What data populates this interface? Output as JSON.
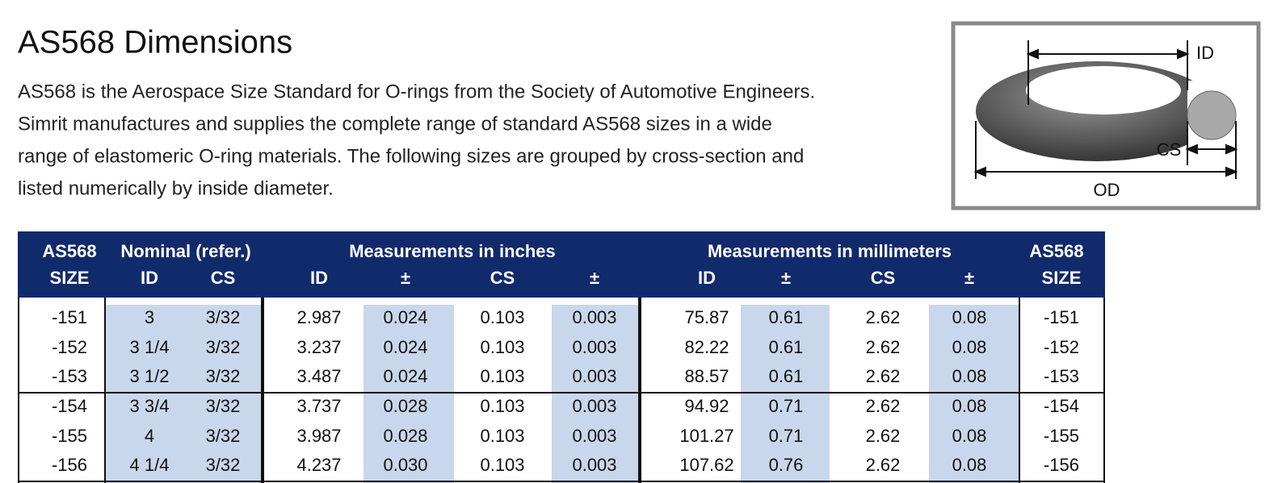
{
  "header": {
    "title": "AS568 Dimensions",
    "paragraph": [
      "AS568 is the Aerospace Size Standard for O-rings from the Society of Automotive Engineers.",
      "Simrit manufactures and supplies the complete range of standard AS568 sizes in a wide",
      "range of elastomeric O-ring materials. The following sizes are grouped by cross-section and",
      "listed numerically by inside diameter."
    ]
  },
  "diagram": {
    "labels": [
      "ID",
      "CS",
      "OD"
    ]
  },
  "table": {
    "group_headers": [
      "AS568",
      "Nominal (refer.)",
      "Measurements in inches",
      "Measurements in millimeters",
      "AS568"
    ],
    "columns": [
      "SIZE",
      "ID",
      "CS",
      "ID",
      "±",
      "CS",
      "±",
      "ID",
      "±",
      "CS",
      "±",
      "SIZE"
    ],
    "rows": [
      [
        "-151",
        "3",
        "3/32",
        "2.987",
        "0.024",
        "0.103",
        "0.003",
        "75.87",
        "0.61",
        "2.62",
        "0.08",
        "-151"
      ],
      [
        "-152",
        "3 1/4",
        "3/32",
        "3.237",
        "0.024",
        "0.103",
        "0.003",
        "82.22",
        "0.61",
        "2.62",
        "0.08",
        "-152"
      ],
      [
        "-153",
        "3 1/2",
        "3/32",
        "3.487",
        "0.024",
        "0.103",
        "0.003",
        "88.57",
        "0.61",
        "2.62",
        "0.08",
        "-153"
      ],
      [
        "-154",
        "3 3/4",
        "3/32",
        "3.737",
        "0.028",
        "0.103",
        "0.003",
        "94.92",
        "0.71",
        "2.62",
        "0.08",
        "-154"
      ],
      [
        "-155",
        "4",
        "3/32",
        "3.987",
        "0.028",
        "0.103",
        "0.003",
        "101.27",
        "0.71",
        "2.62",
        "0.08",
        "-155"
      ],
      [
        "-156",
        "4 1/4",
        "3/32",
        "4.237",
        "0.030",
        "0.103",
        "0.003",
        "107.62",
        "0.76",
        "2.62",
        "0.08",
        "-156"
      ]
    ]
  }
}
